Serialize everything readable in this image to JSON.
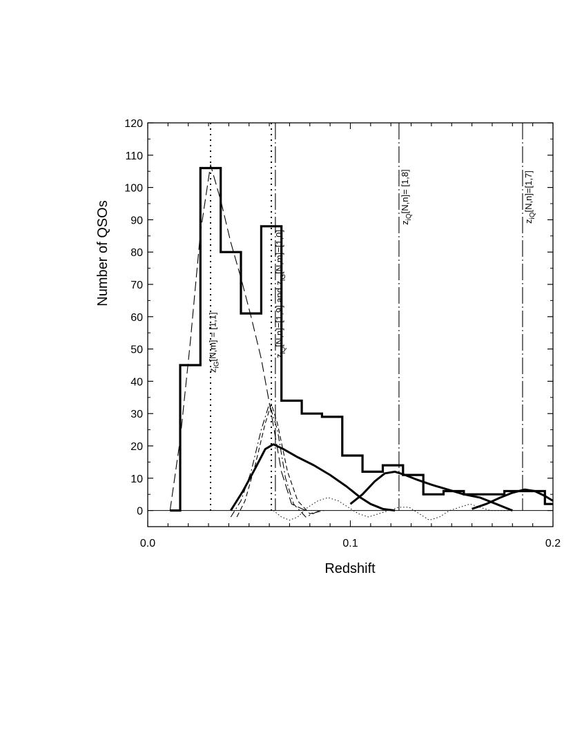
{
  "chart_data": {
    "type": "line",
    "title": "",
    "xlabel": "Redshift",
    "ylabel": "Number of QSOs",
    "xlim": [
      0.0,
      0.2
    ],
    "ylim": [
      -5,
      120
    ],
    "grid": false,
    "x_ticks": [
      0.0,
      0.1,
      0.2
    ],
    "x_tick_labels": [
      "0.0",
      "0.1",
      "0.2"
    ],
    "y_ticks": [
      0,
      10,
      20,
      30,
      40,
      50,
      60,
      70,
      80,
      90,
      100,
      110,
      120
    ],
    "y_tick_labels": [
      "0",
      "10",
      "20",
      "30",
      "40",
      "50",
      "60",
      "70",
      "80",
      "90",
      "100",
      "110",
      "120"
    ],
    "histogram": {
      "bin_edges": [
        0.011,
        0.016,
        0.026,
        0.036,
        0.046,
        0.056,
        0.066,
        0.076,
        0.086,
        0.096,
        0.106,
        0.116,
        0.126,
        0.136,
        0.146,
        0.156,
        0.166,
        0.176,
        0.186,
        0.196,
        0.2
      ],
      "counts": [
        0,
        45,
        106,
        80,
        61,
        88,
        34,
        30,
        29,
        17,
        12,
        14,
        11,
        5,
        6,
        5,
        5,
        6,
        6,
        2
      ]
    },
    "model_curves": [
      {
        "style": "long-dashed",
        "points": [
          [
            0.011,
            0
          ],
          [
            0.016,
            22
          ],
          [
            0.021,
            52
          ],
          [
            0.026,
            86
          ],
          [
            0.031,
            107
          ],
          [
            0.036,
            96
          ],
          [
            0.041,
            83
          ],
          [
            0.046,
            72
          ],
          [
            0.051,
            60
          ],
          [
            0.056,
            47
          ],
          [
            0.061,
            30
          ],
          [
            0.066,
            12
          ],
          [
            0.071,
            2
          ],
          [
            0.078,
            0
          ]
        ]
      },
      {
        "style": "dash-dot",
        "points": [
          [
            0.041,
            -2
          ],
          [
            0.046,
            3
          ],
          [
            0.051,
            12
          ],
          [
            0.056,
            25
          ],
          [
            0.06,
            33
          ],
          [
            0.064,
            25
          ],
          [
            0.068,
            10
          ],
          [
            0.072,
            2
          ],
          [
            0.078,
            -2
          ],
          [
            0.085,
            0
          ]
        ]
      },
      {
        "style": "dashed",
        "points": [
          [
            0.044,
            -2
          ],
          [
            0.048,
            3
          ],
          [
            0.053,
            14
          ],
          [
            0.058,
            27
          ],
          [
            0.061,
            33
          ],
          [
            0.064,
            27
          ],
          [
            0.069,
            12
          ],
          [
            0.074,
            3
          ],
          [
            0.08,
            -1
          ],
          [
            0.087,
            0
          ]
        ]
      },
      {
        "style": "dotted",
        "points": [
          [
            0.062,
            0
          ],
          [
            0.066,
            -2
          ],
          [
            0.07,
            -3
          ],
          [
            0.074,
            -2
          ],
          [
            0.079,
            1
          ],
          [
            0.084,
            3
          ],
          [
            0.089,
            4
          ],
          [
            0.094,
            3
          ],
          [
            0.099,
            1
          ],
          [
            0.104,
            -1
          ],
          [
            0.109,
            -2
          ],
          [
            0.114,
            -1
          ],
          [
            0.119,
            0
          ],
          [
            0.124,
            1
          ],
          [
            0.129,
            1
          ],
          [
            0.134,
            -1
          ],
          [
            0.139,
            -3
          ],
          [
            0.144,
            -2
          ],
          [
            0.149,
            0
          ],
          [
            0.154,
            1
          ],
          [
            0.159,
            2
          ],
          [
            0.164,
            1
          ],
          [
            0.169,
            0
          ],
          [
            0.179,
            0
          ]
        ]
      },
      {
        "style": "thick-solid",
        "points": [
          [
            0.041,
            0
          ],
          [
            0.047,
            6
          ],
          [
            0.053,
            13
          ],
          [
            0.058,
            19
          ],
          [
            0.062,
            20.5
          ],
          [
            0.067,
            19
          ],
          [
            0.074,
            16.5
          ],
          [
            0.082,
            14
          ],
          [
            0.09,
            11
          ],
          [
            0.098,
            7.5
          ],
          [
            0.105,
            4
          ],
          [
            0.11,
            2
          ],
          [
            0.116,
            0.5
          ],
          [
            0.122,
            0
          ]
        ]
      },
      {
        "style": "thick-solid",
        "points": [
          [
            0.1,
            2
          ],
          [
            0.106,
            5
          ],
          [
            0.112,
            9
          ],
          [
            0.117,
            11.5
          ],
          [
            0.122,
            12
          ],
          [
            0.127,
            11
          ],
          [
            0.133,
            9.5
          ],
          [
            0.14,
            8
          ],
          [
            0.148,
            6.5
          ],
          [
            0.156,
            5
          ],
          [
            0.164,
            4
          ],
          [
            0.172,
            2
          ],
          [
            0.18,
            0
          ]
        ]
      },
      {
        "style": "thick-solid",
        "points": [
          [
            0.16,
            0.5
          ],
          [
            0.167,
            2
          ],
          [
            0.174,
            4
          ],
          [
            0.18,
            5.5
          ],
          [
            0.186,
            6.5
          ],
          [
            0.191,
            6
          ],
          [
            0.196,
            4.5
          ],
          [
            0.2,
            3
          ]
        ]
      }
    ],
    "vertical_lines": [
      {
        "x": 0.031,
        "style": "dotted"
      },
      {
        "x": 0.061,
        "style": "dotted"
      },
      {
        "x": 0.063,
        "style": "dash-dot"
      },
      {
        "x": 0.124,
        "style": "dash-dot"
      },
      {
        "x": 0.185,
        "style": "dash-dot"
      }
    ],
    "annotations": [
      {
        "text": "z",
        "sub": "iG",
        "tail": "[N,m] = [1,1]",
        "x": 0.0335,
        "y": 52
      },
      {
        "text": "z",
        "sub": "iQ",
        "tail": "[N,n]=[1,9] and z",
        "sub2": "iG",
        "tail2": "[N,m]=[1,0]",
        "x": 0.0665,
        "y": 67
      },
      {
        "text": "z",
        "sub": "iQ",
        "tail": "[N,n]= [1,8]",
        "x": 0.1285,
        "y": 97
      },
      {
        "text": "z",
        "sub": "iQ",
        "tail": "[N,n]=[1,7]",
        "x": 0.1895,
        "y": 97
      }
    ]
  }
}
